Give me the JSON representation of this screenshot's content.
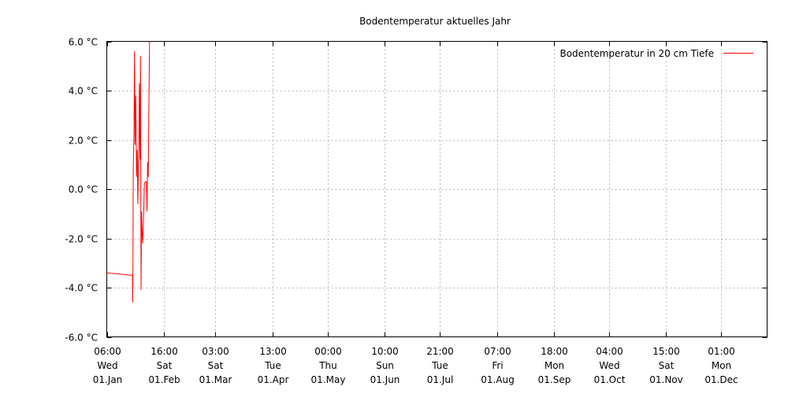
{
  "chart_data": {
    "type": "line",
    "title": "Bodentemperatur aktuelles Jahr",
    "legend": {
      "label": "Bodentemperatur in 20 cm Tiefe",
      "placement": "top-right"
    },
    "ylim": [
      -6.0,
      6.0
    ],
    "y_ticks": [
      {
        "value": -6.0,
        "label": "-6.0 °C"
      },
      {
        "value": -4.0,
        "label": "-4.0 °C"
      },
      {
        "value": -2.0,
        "label": "-2.0 °C"
      },
      {
        "value": 0.0,
        "label": "0.0 °C"
      },
      {
        "value": 2.0,
        "label": "2.0 °C"
      },
      {
        "value": 4.0,
        "label": "4.0 °C"
      },
      {
        "value": 6.0,
        "label": "6.0 °C"
      }
    ],
    "xlim": [
      "01.Jan 06:00",
      "31.Dec 06:00"
    ],
    "x_ticks": [
      {
        "time": "06:00",
        "weekday": "Wed",
        "date": "01.Jan",
        "day": 0
      },
      {
        "time": "16:00",
        "weekday": "Sat",
        "date": "01.Feb",
        "day": 31.42
      },
      {
        "time": "03:00",
        "weekday": "Sat",
        "date": "01.Mar",
        "day": 59.88
      },
      {
        "time": "13:00",
        "weekday": "Tue",
        "date": "01.Apr",
        "day": 91.29
      },
      {
        "time": "00:00",
        "weekday": "Thu",
        "date": "01.May",
        "day": 121.75
      },
      {
        "time": "10:00",
        "weekday": "Sun",
        "date": "01.Jun",
        "day": 153.17
      },
      {
        "time": "21:00",
        "weekday": "Tue",
        "date": "01.Jul",
        "day": 183.63
      },
      {
        "time": "07:00",
        "weekday": "Fri",
        "date": "01.Aug",
        "day": 215.04
      },
      {
        "time": "18:00",
        "weekday": "Mon",
        "date": "01.Sep",
        "day": 246.5
      },
      {
        "time": "04:00",
        "weekday": "Wed",
        "date": "01.Oct",
        "day": 276.92
      },
      {
        "time": "15:00",
        "weekday": "Sat",
        "date": "01.Nov",
        "day": 308.38
      },
      {
        "time": "01:00",
        "weekday": "Mon",
        "date": "01.Dec",
        "day": 338.79
      }
    ],
    "grid": true,
    "x_range_days": [
      0,
      364
    ],
    "series": [
      {
        "name": "Bodentemperatur in 20 cm Tiefe",
        "color": "#ff0000",
        "points": [
          [
            0,
            -3.4
          ],
          [
            7,
            -3.45
          ],
          [
            14.2,
            -3.5
          ],
          [
            14.3,
            -4.6
          ],
          [
            14.4,
            -3.6
          ],
          [
            14.6,
            0.8
          ],
          [
            15.0,
            2.2
          ],
          [
            15.3,
            5.6
          ],
          [
            15.6,
            1.8
          ],
          [
            16.0,
            3.8
          ],
          [
            16.4,
            0.5
          ],
          [
            16.8,
            1.6
          ],
          [
            17.1,
            -0.6
          ],
          [
            17.5,
            1.2
          ],
          [
            17.8,
            2.5
          ],
          [
            18.0,
            4.3
          ],
          [
            18.3,
            1.2
          ],
          [
            18.6,
            5.4
          ],
          [
            18.9,
            -4.1
          ],
          [
            19.2,
            -0.9
          ],
          [
            19.5,
            -1.8
          ],
          [
            19.8,
            -2.2
          ],
          [
            20.1,
            -1.5
          ],
          [
            20.4,
            -0.8
          ],
          [
            20.7,
            0.2
          ],
          [
            21.2,
            0.3
          ],
          [
            21.8,
            0.3
          ],
          [
            22.2,
            -0.9
          ],
          [
            22.5,
            1.1
          ],
          [
            22.9,
            0.5
          ],
          [
            23.2,
            3.2
          ],
          [
            23.6,
            6.0
          ]
        ]
      }
    ]
  }
}
